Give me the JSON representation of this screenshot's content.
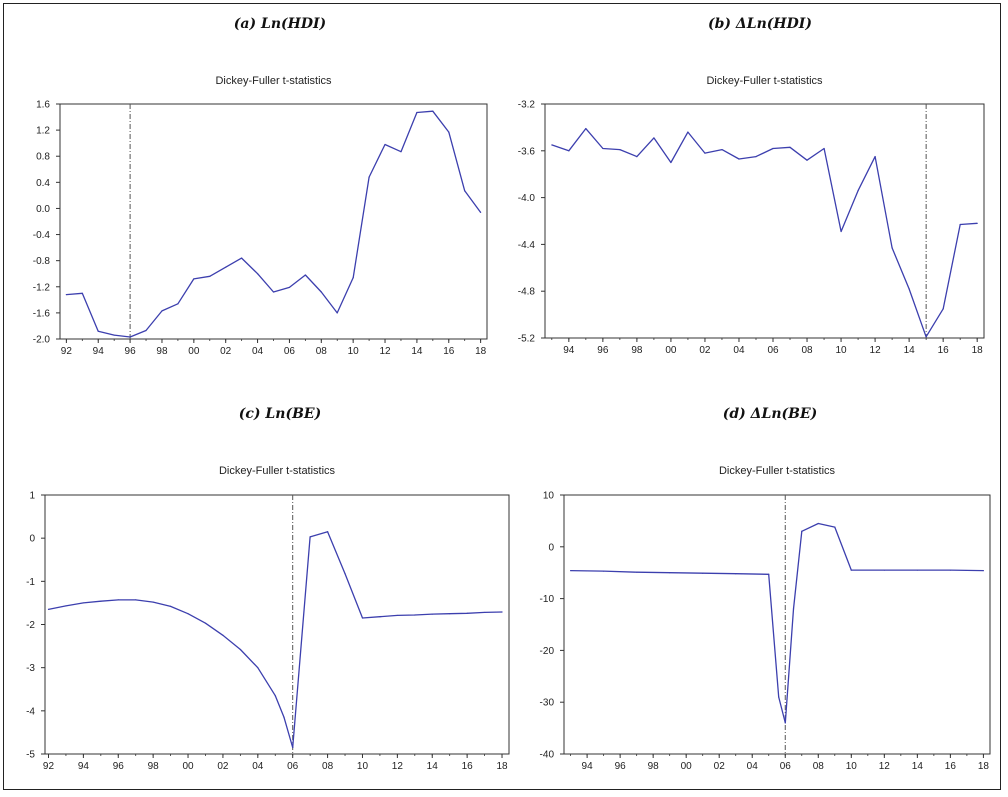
{
  "panels": [
    {
      "heading": "(a) Ln(HDI)",
      "chart_data": {
        "type": "line",
        "title": "Dickey-Fuller t-statistics",
        "x_tick_labels": [
          "92",
          "94",
          "96",
          "98",
          "00",
          "02",
          "04",
          "06",
          "08",
          "10",
          "12",
          "14",
          "16",
          "18"
        ],
        "x_tick_years": [
          1992,
          1994,
          1996,
          1998,
          2000,
          2002,
          2004,
          2006,
          2008,
          2010,
          2012,
          2014,
          2016,
          2018
        ],
        "xlim": [
          1991.6,
          2018.4
        ],
        "ylim": [
          -2.0,
          1.6
        ],
        "y_ticks": [
          "-2.0",
          "-1.6",
          "-1.2",
          "-0.8",
          "-0.4",
          "0.0",
          "0.4",
          "0.8",
          "1.2",
          "1.6"
        ],
        "break_x": 1996,
        "series": [
          {
            "x": [
              1992,
              1993,
              1994,
              1995,
              1996,
              1997,
              1998,
              1999,
              2000,
              2001,
              2002,
              2003,
              2004,
              2005,
              2006,
              2007,
              2008,
              2009,
              2010,
              2011,
              2012,
              2013,
              2014,
              2015,
              2016,
              2017,
              2018
            ],
            "values": [
              -1.32,
              -1.3,
              -1.88,
              -1.94,
              -1.97,
              -1.87,
              -1.57,
              -1.46,
              -1.08,
              -1.04,
              -0.9,
              -0.76,
              -1.0,
              -1.28,
              -1.21,
              -1.02,
              -1.28,
              -1.6,
              -1.06,
              0.48,
              0.98,
              0.87,
              1.47,
              1.49,
              1.17,
              0.27,
              -0.06
            ]
          }
        ]
      }
    },
    {
      "heading": "(b) ΔLn(HDI)",
      "chart_data": {
        "type": "line",
        "title": "Dickey-Fuller t-statistics",
        "x_tick_labels": [
          "94",
          "96",
          "98",
          "00",
          "02",
          "04",
          "06",
          "08",
          "10",
          "12",
          "14",
          "16",
          "18"
        ],
        "x_tick_years": [
          1994,
          1996,
          1998,
          2000,
          2002,
          2004,
          2006,
          2008,
          2010,
          2012,
          2014,
          2016,
          2018
        ],
        "xlim": [
          1992.6,
          2018.4
        ],
        "ylim": [
          -5.2,
          -3.2
        ],
        "y_ticks": [
          "-5.2",
          "-4.8",
          "-4.4",
          "-4.0",
          "-3.6",
          "-3.2"
        ],
        "break_x": 2015,
        "series": [
          {
            "x": [
              1993,
              1994,
              1995,
              1996,
              1997,
              1998,
              1999,
              2000,
              2001,
              2002,
              2003,
              2004,
              2005,
              2006,
              2007,
              2008,
              2009,
              2010,
              2011,
              2012,
              2013,
              2014,
              2015,
              2016,
              2017,
              2018
            ],
            "values": [
              -3.55,
              -3.6,
              -3.41,
              -3.58,
              -3.59,
              -3.65,
              -3.49,
              -3.7,
              -3.44,
              -3.62,
              -3.59,
              -3.67,
              -3.65,
              -3.58,
              -3.57,
              -3.68,
              -3.58,
              -4.29,
              -3.94,
              -3.65,
              -4.43,
              -4.78,
              -5.19,
              -4.95,
              -4.23,
              -4.22
            ]
          }
        ]
      }
    },
    {
      "heading": "(c) Ln(BE)",
      "chart_data": {
        "type": "line",
        "title": "Dickey-Fuller t-statistics",
        "x_tick_labels": [
          "92",
          "94",
          "96",
          "98",
          "00",
          "02",
          "04",
          "06",
          "08",
          "10",
          "12",
          "14",
          "16",
          "18"
        ],
        "x_tick_years": [
          1992,
          1994,
          1996,
          1998,
          2000,
          2002,
          2004,
          2006,
          2008,
          2010,
          2012,
          2014,
          2016,
          2018
        ],
        "xlim": [
          1991.8,
          2018.4
        ],
        "ylim": [
          -5,
          1
        ],
        "y_ticks": [
          "-5",
          "-4",
          "-3",
          "-2",
          "-1",
          "0",
          "1"
        ],
        "break_x": 2006,
        "series": [
          {
            "x": [
              1992,
              1993,
              1994,
              1995,
              1996,
              1997,
              1998,
              1999,
              2000,
              2001,
              2002,
              2003,
              2004,
              2005,
              2005.5,
              2006,
              2007,
              2008,
              2009,
              2010,
              2011,
              2012,
              2013,
              2014,
              2015,
              2016,
              2017,
              2018
            ],
            "values": [
              -1.65,
              -1.57,
              -1.5,
              -1.46,
              -1.43,
              -1.43,
              -1.48,
              -1.58,
              -1.75,
              -1.97,
              -2.25,
              -2.58,
              -3.0,
              -3.65,
              -4.15,
              -4.85,
              0.03,
              0.15,
              -0.82,
              -1.85,
              -1.82,
              -1.79,
              -1.78,
              -1.76,
              -1.75,
              -1.74,
              -1.72,
              -1.71
            ]
          }
        ]
      }
    },
    {
      "heading": "(d) ΔLn(BE)",
      "chart_data": {
        "type": "line",
        "title": "Dickey-Fuller t-statistics",
        "x_tick_labels": [
          "94",
          "96",
          "98",
          "00",
          "02",
          "04",
          "06",
          "08",
          "10",
          "12",
          "14",
          "16",
          "18"
        ],
        "x_tick_years": [
          1994,
          1996,
          1998,
          2000,
          2002,
          2004,
          2006,
          2008,
          2010,
          2012,
          2014,
          2016,
          2018
        ],
        "xlim": [
          1992.6,
          2018.4
        ],
        "ylim": [
          -40,
          10
        ],
        "y_ticks": [
          "-40",
          "-30",
          "-20",
          "-10",
          "0",
          "10"
        ],
        "break_x": 2006,
        "series": [
          {
            "x": [
              1993,
              1995,
              1997,
              1999,
              2001,
              2003,
              2005,
              2005.6,
              2006,
              2006.5,
              2007,
              2008,
              2009,
              2010,
              2012,
              2014,
              2016,
              2018
            ],
            "values": [
              -4.6,
              -4.7,
              -4.9,
              -5.0,
              -5.1,
              -5.2,
              -5.3,
              -29.0,
              -34.0,
              -12.0,
              3.0,
              4.5,
              3.8,
              -4.5,
              -4.5,
              -4.5,
              -4.5,
              -4.6
            ]
          }
        ]
      }
    }
  ]
}
